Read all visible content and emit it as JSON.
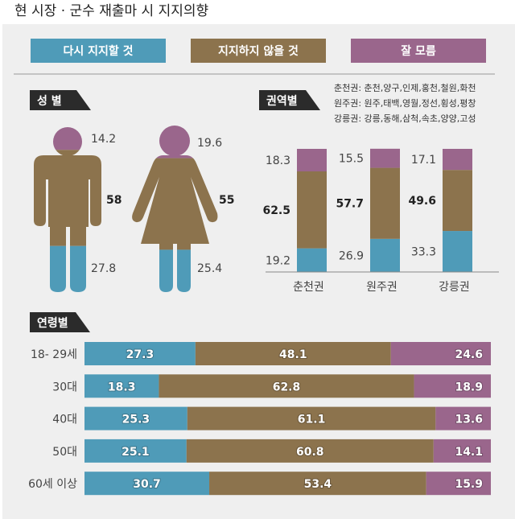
{
  "title": "현 시장 · 군수 재출마 시 지지의향",
  "legend": {
    "labels": [
      "다시 지지할 것",
      "지지하지 않을 것",
      "잘 모름"
    ],
    "colors": [
      "#4f9bb8",
      "#8c734d",
      "#9a668c"
    ]
  },
  "chart_data": [
    {
      "type": "pictogram-stacked",
      "title": "성 별",
      "series": [
        {
          "name": "다시 지지할 것",
          "values": [
            27.8,
            25.4
          ]
        },
        {
          "name": "지지하지 않을 것",
          "values": [
            58,
            55
          ]
        },
        {
          "name": "잘 모름",
          "values": [
            14.2,
            19.6
          ]
        }
      ],
      "value_labels": [
        [
          "27.8",
          "58",
          "14.2"
        ],
        [
          "25.4",
          "55",
          "19.6"
        ]
      ]
    },
    {
      "type": "bar",
      "stacked": true,
      "title": "권역별",
      "notes": [
        "춘천권: 춘천,양구,인제,홍천,철원,화천",
        "원주권: 원주,태백,영월,정선,횡성,평창",
        "강릉권: 강릉,동해,삼척,속초,양양,고성"
      ],
      "categories": [
        "춘천권",
        "원주권",
        "강릉권"
      ],
      "series": [
        {
          "name": "다시 지지할 것",
          "values": [
            19.2,
            26.9,
            33.3
          ]
        },
        {
          "name": "지지하지 않을 것",
          "values": [
            62.5,
            57.7,
            49.6
          ]
        },
        {
          "name": "잘 모름",
          "values": [
            18.3,
            15.5,
            17.1
          ]
        }
      ],
      "ylim": [
        0,
        100
      ]
    },
    {
      "type": "bar",
      "orientation": "horizontal",
      "stacked": true,
      "title": "연령별",
      "categories": [
        "18- 29세",
        "30대",
        "40대",
        "50대",
        "60세 이상"
      ],
      "series": [
        {
          "name": "다시 지지할 것",
          "values": [
            27.3,
            18.3,
            25.3,
            25.1,
            30.7
          ]
        },
        {
          "name": "지지하지 않을 것",
          "values": [
            48.1,
            62.8,
            61.1,
            60.8,
            53.4
          ]
        },
        {
          "name": "잘 모름",
          "values": [
            24.6,
            18.9,
            13.6,
            14.1,
            15.9
          ]
        }
      ],
      "xlim": [
        0,
        100
      ]
    }
  ]
}
